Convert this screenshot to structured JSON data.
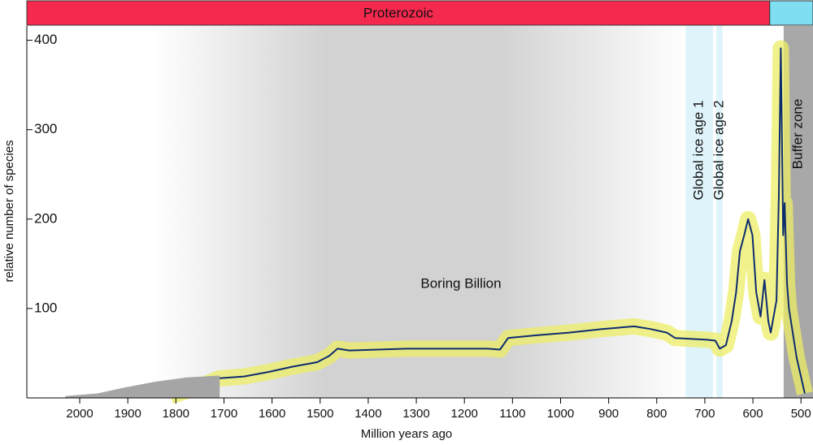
{
  "chart_data": {
    "type": "line",
    "xlabel": "Million years ago",
    "ylabel": "relative number of species",
    "xlim": [
      2110,
      475
    ],
    "ylim": [
      0,
      416
    ],
    "xticks": [
      2000,
      1900,
      1800,
      1700,
      1600,
      1500,
      1400,
      1300,
      1200,
      1100,
      1000,
      900,
      800,
      700,
      600,
      500
    ],
    "yticks": [
      100,
      200,
      300,
      400
    ],
    "periods": [
      {
        "label": "Proterozoic",
        "from": 2110,
        "to": 565,
        "color": "#f5284e"
      },
      {
        "from": 565,
        "to": 475,
        "color": "#80def2"
      }
    ],
    "bands": [
      {
        "label": "Global ice age 1",
        "from": 740,
        "to": 683,
        "color": "#dff3fa"
      },
      {
        "label": "Global ice age 2",
        "from": 676,
        "to": 663,
        "color": "#dff3fa"
      },
      {
        "label": "Buffer zone",
        "from": 536,
        "to": 475,
        "color": "#a8a8a8"
      }
    ],
    "annotation": "Boring Billion",
    "series": [
      {
        "color": "#0d2c6e",
        "band_color": "#eeee66",
        "x": [
          1811,
          1760,
          1709,
          1658,
          1608,
          1557,
          1506,
          1481,
          1464,
          1439,
          1320,
          1151,
          1126,
          1109,
          1050,
          982,
          914,
          847,
          813,
          779,
          762,
          695,
          678,
          669,
          656,
          644,
          635,
          627,
          618,
          610,
          601,
          593,
          584,
          576,
          568,
          563,
          551,
          546,
          542,
          537,
          534,
          529,
          525,
          509,
          492
        ],
        "values": [
          2,
          11,
          22,
          24,
          29,
          35,
          40,
          47,
          55,
          53,
          55,
          55,
          54,
          67,
          70,
          73,
          77,
          80,
          77,
          73,
          67,
          65,
          64,
          55,
          59,
          86,
          118,
          164,
          182,
          200,
          182,
          118,
          91,
          132,
          86,
          73,
          109,
          227,
          391,
          182,
          218,
          127,
          100,
          45,
          5
        ]
      },
      {
        "type": "area",
        "color": "#a5a5a5",
        "x": [
          2030,
          1963,
          1912,
          1845,
          1777,
          1709
        ],
        "values": [
          2,
          5,
          11,
          18,
          23,
          25
        ]
      }
    ]
  }
}
